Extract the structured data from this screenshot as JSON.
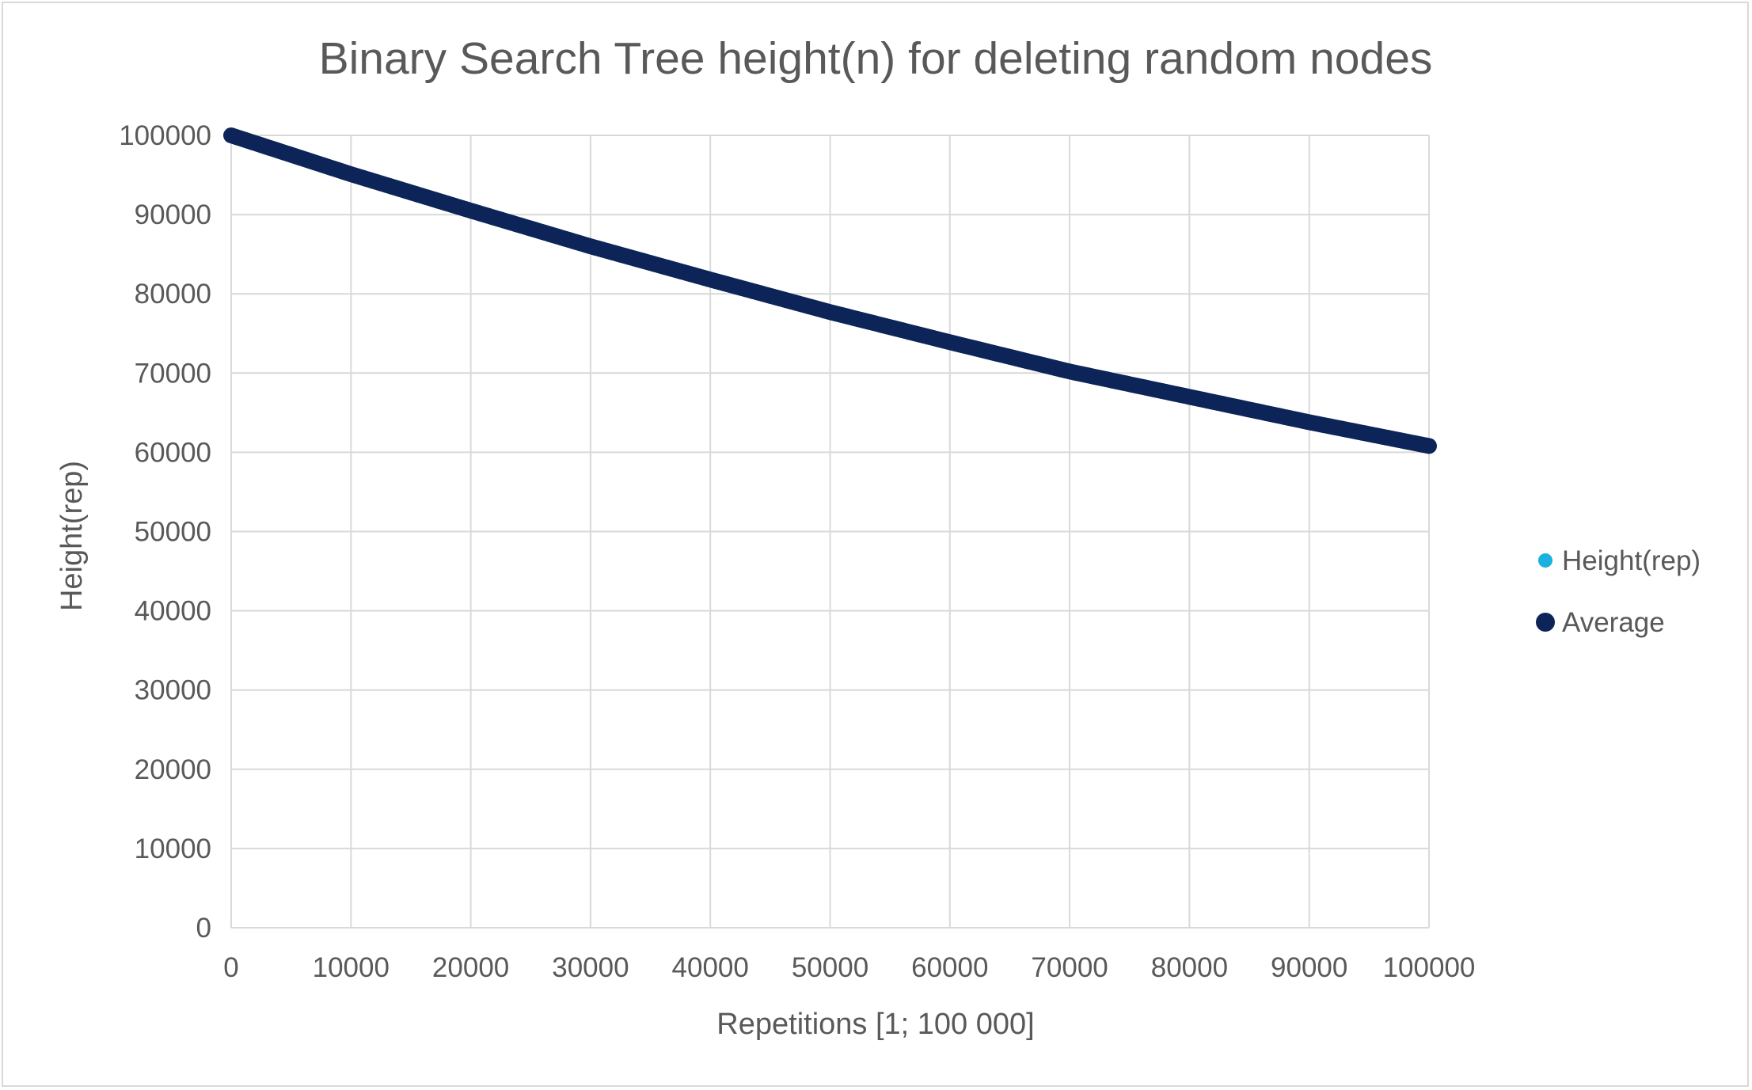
{
  "chart_data": {
    "type": "scatter",
    "title": "Binary Search Tree height(n) for deleting random nodes",
    "xlabel": "Repetitions [1; 100 000]",
    "ylabel": "Height(rep)",
    "xlim": [
      0,
      100000
    ],
    "ylim": [
      0,
      100000
    ],
    "xticks": [
      "0",
      "10000",
      "20000",
      "30000",
      "40000",
      "50000",
      "60000",
      "70000",
      "80000",
      "90000",
      "100000"
    ],
    "yticks": [
      "0",
      "10000",
      "20000",
      "30000",
      "40000",
      "50000",
      "60000",
      "70000",
      "80000",
      "90000",
      "100000"
    ],
    "grid": true,
    "legend_position": "right",
    "series": [
      {
        "name": "Height(rep)",
        "color": "#1ab0e0",
        "x": [],
        "y": []
      },
      {
        "name": "Average",
        "color": "#0d2458",
        "x": [
          1,
          10000,
          20000,
          30000,
          40000,
          50000,
          60000,
          70000,
          80000,
          90000,
          100000
        ],
        "y": [
          99999,
          95100,
          90500,
          86000,
          81800,
          77700,
          73900,
          70200,
          67000,
          63800,
          60800
        ]
      }
    ]
  }
}
